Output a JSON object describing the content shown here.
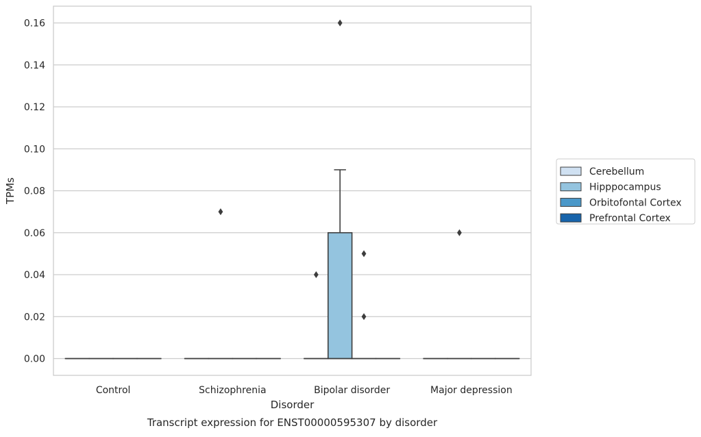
{
  "chart_data": {
    "type": "box",
    "title": "",
    "caption": "Transcript expression for ENST00000595307 by disorder",
    "xlabel": "Disorder",
    "ylabel": "TPMs",
    "ylim": [
      -0.008,
      0.168
    ],
    "yticks": [
      0.0,
      0.02,
      0.04,
      0.06,
      0.08,
      0.1,
      0.12,
      0.14,
      0.16
    ],
    "ytick_labels": [
      "0.00",
      "0.02",
      "0.04",
      "0.06",
      "0.08",
      "0.10",
      "0.12",
      "0.14",
      "0.16"
    ],
    "grid": "horizontal",
    "legend_position": "right",
    "categories": [
      "Control",
      "Schizophrenia",
      "Bipolar disorder",
      "Major depression"
    ],
    "series": [
      {
        "name": "Cerebellum",
        "color": "#d0e1f2",
        "boxes": [
          {
            "min": 0,
            "q1": 0,
            "median": 0,
            "q3": 0,
            "max": 0,
            "outliers": []
          },
          {
            "min": 0,
            "q1": 0,
            "median": 0,
            "q3": 0,
            "max": 0,
            "outliers": []
          },
          {
            "min": 0,
            "q1": 0,
            "median": 0,
            "q3": 0,
            "max": 0,
            "outliers": [
              0.04
            ]
          },
          {
            "min": 0,
            "q1": 0,
            "median": 0,
            "q3": 0,
            "max": 0,
            "outliers": []
          }
        ]
      },
      {
        "name": "Hipppocampus",
        "color": "#94c4df",
        "boxes": [
          {
            "min": 0,
            "q1": 0,
            "median": 0,
            "q3": 0,
            "max": 0,
            "outliers": []
          },
          {
            "min": 0,
            "q1": 0,
            "median": 0,
            "q3": 0,
            "max": 0,
            "outliers": [
              0.07
            ]
          },
          {
            "min": 0,
            "q1": 0,
            "median": 0,
            "q3": 0.06,
            "max": 0.09,
            "outliers": [
              0.16
            ]
          },
          {
            "min": 0,
            "q1": 0,
            "median": 0,
            "q3": 0,
            "max": 0,
            "outliers": [
              0.06
            ]
          }
        ]
      },
      {
        "name": "Orbitofontal Cortex",
        "color": "#4a98c9",
        "boxes": [
          {
            "min": 0,
            "q1": 0,
            "median": 0,
            "q3": 0,
            "max": 0,
            "outliers": []
          },
          {
            "min": 0,
            "q1": 0,
            "median": 0,
            "q3": 0,
            "max": 0,
            "outliers": []
          },
          {
            "min": 0,
            "q1": 0,
            "median": 0,
            "q3": 0,
            "max": 0,
            "outliers": [
              0.05,
              0.02
            ]
          },
          {
            "min": 0,
            "q1": 0,
            "median": 0,
            "q3": 0,
            "max": 0,
            "outliers": []
          }
        ]
      },
      {
        "name": "Prefrontal Cortex",
        "color": "#1764ab",
        "boxes": [
          {
            "min": 0,
            "q1": 0,
            "median": 0,
            "q3": 0,
            "max": 0,
            "outliers": []
          },
          {
            "min": 0,
            "q1": 0,
            "median": 0,
            "q3": 0,
            "max": 0,
            "outliers": []
          },
          {
            "min": 0,
            "q1": 0,
            "median": 0,
            "q3": 0,
            "max": 0,
            "outliers": []
          },
          {
            "min": 0,
            "q1": 0,
            "median": 0,
            "q3": 0,
            "max": 0,
            "outliers": []
          }
        ]
      }
    ]
  }
}
